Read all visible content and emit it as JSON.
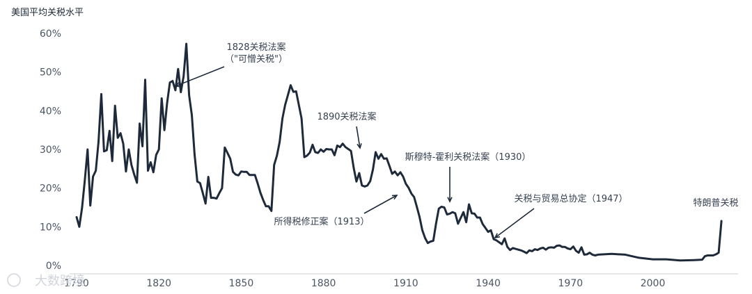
{
  "chart_data": {
    "type": "line",
    "title": "",
    "ylabel": "美国平均关税水平",
    "xlabel": "",
    "xlim": [
      1790,
      2026
    ],
    "ylim": [
      0,
      60
    ],
    "xticks": [
      1790,
      1820,
      1850,
      1880,
      1910,
      1940,
      1970,
      2000
    ],
    "yticks": [
      "0%",
      "10%",
      "20%",
      "30%",
      "40%",
      "50%",
      "60%"
    ],
    "grid": false,
    "series": [
      {
        "x": [
          1790,
          1791,
          1792,
          1793,
          1794,
          1795,
          1796,
          1797,
          1798,
          1799,
          1800,
          1801,
          1802,
          1803,
          1804,
          1805,
          1806,
          1807,
          1808,
          1809,
          1810,
          1811,
          1812,
          1813,
          1814,
          1815,
          1816,
          1817,
          1818,
          1819,
          1820,
          1821,
          1822,
          1823,
          1824,
          1825,
          1826,
          1827,
          1828,
          1829,
          1830,
          1831,
          1832,
          1833,
          1834,
          1835,
          1836,
          1837,
          1838,
          1839,
          1840,
          1841,
          1842,
          1843,
          1844,
          1845,
          1846,
          1847,
          1848,
          1849,
          1850,
          1851,
          1852,
          1853,
          1854,
          1855,
          1856,
          1857,
          1858,
          1859,
          1860,
          1861,
          1862,
          1863,
          1864,
          1865,
          1866,
          1867,
          1868,
          1869,
          1870,
          1871,
          1872,
          1873,
          1874,
          1875,
          1876,
          1877,
          1878,
          1879,
          1880,
          1881,
          1882,
          1883,
          1884,
          1885,
          1886,
          1887,
          1888,
          1889,
          1890,
          1891,
          1892,
          1893,
          1894,
          1895,
          1896,
          1897,
          1898,
          1899,
          1900,
          1901,
          1902,
          1903,
          1904,
          1905,
          1906,
          1907,
          1908,
          1909,
          1910,
          1911,
          1912,
          1913,
          1914,
          1915,
          1916,
          1917,
          1918,
          1919,
          1920,
          1921,
          1922,
          1923,
          1924,
          1925,
          1926,
          1927,
          1928,
          1929,
          1930,
          1931,
          1932,
          1933,
          1934,
          1935,
          1936,
          1937,
          1938,
          1939,
          1940,
          1941,
          1942,
          1943,
          1944,
          1945,
          1946,
          1947,
          1948,
          1949,
          1950,
          1951,
          1952,
          1953,
          1954,
          1955,
          1956,
          1957,
          1958,
          1959,
          1960,
          1961,
          1962,
          1963,
          1964,
          1965,
          1966,
          1967,
          1968,
          1969,
          1970,
          1971,
          1972,
          1973,
          1974,
          1975,
          1976,
          1977,
          1978,
          1979,
          1980,
          1985,
          1990,
          1995,
          2000,
          2005,
          2010,
          2015,
          2018,
          2019,
          2020,
          2022,
          2023,
          2024,
          2025
        ],
        "y": [
          12.5,
          10,
          15,
          22,
          30,
          15.5,
          23,
          24.5,
          32,
          44.3,
          29.5,
          29.8,
          34.8,
          27,
          41.3,
          33,
          34.2,
          31.5,
          24.3,
          30,
          26,
          23.5,
          21.4,
          36.7,
          30.8,
          48,
          24.5,
          26.7,
          24.1,
          28.6,
          30,
          43.2,
          35,
          42,
          47.3,
          47.7,
          45.3,
          50.8,
          44.8,
          48.9,
          57.3,
          44,
          38.9,
          28.8,
          21.7,
          21.3,
          18.7,
          16,
          22.9,
          17.5,
          17.5,
          17.3,
          18.7,
          20,
          30.5,
          29.1,
          27.6,
          24.2,
          23.5,
          23.3,
          24.3,
          24.2,
          24.2,
          23.4,
          23.4,
          23.4,
          21.2,
          18.8,
          16.9,
          15.3,
          15.3,
          14.1,
          26,
          28.4,
          31.9,
          38,
          41.5,
          44,
          46.6,
          44.9,
          45,
          41.5,
          38,
          28,
          28.4,
          29.2,
          31.2,
          29.3,
          29.1,
          30,
          29.4,
          30.1,
          30,
          30,
          28.5,
          31,
          30.6,
          31.5,
          30.6,
          30.1,
          29.6,
          25.2,
          21.7,
          23.9,
          20.7,
          20.4,
          20.7,
          21.8,
          24.8,
          29.3,
          27.6,
          28.8,
          27.6,
          27.7,
          25.8,
          23.7,
          24.3,
          23.3,
          24.1,
          23,
          21.1,
          20.1,
          18.6,
          17.7,
          15.2,
          12.5,
          9.1,
          7.1,
          5.8,
          6.2,
          6.4,
          10.8,
          14.7,
          15.2,
          15,
          13.2,
          13.4,
          13.8,
          13.5,
          10.8,
          12.3,
          13.8,
          11.2,
          15.8,
          13.5,
          13.4,
          12.4,
          12.4,
          10.7,
          9.7,
          8.7,
          9.1,
          6.8,
          6.5,
          6,
          5.5,
          7,
          4.8,
          4,
          4.5,
          4.3,
          4.1,
          3.9,
          3.6,
          3.2,
          3.9,
          3.7,
          4.2,
          4,
          4.4,
          4.6,
          4.1,
          4.6,
          4.7,
          4.6,
          5.1,
          5.2,
          4.8,
          4.8,
          4.4,
          4.2,
          4.9,
          3.8,
          3.3,
          4.7,
          2.8,
          2.9,
          3.3,
          2.8,
          2.6,
          2.8,
          3,
          2.8,
          2,
          1.6,
          1.6,
          1.3,
          1.4,
          1.5,
          2.4,
          2.6,
          2.6,
          2.9,
          3.3,
          11.5
        ]
      }
    ],
    "annotations": [
      {
        "lines": [
          "1828关税法案",
          "（\"可憎关税\"）"
        ],
        "x": 1828,
        "y": 47.3
      },
      {
        "lines": [
          "1890关税法案"
        ],
        "x": 1893,
        "y": 29
      },
      {
        "lines": [
          "斯穆特-霍利关税法案（1930）"
        ],
        "x": 1930,
        "y": 16.3
      },
      {
        "lines": [
          "所得税修正案（1913）"
        ],
        "x": 1913,
        "y": 18.2
      },
      {
        "lines": [
          "关税与贸易总协定（1947）"
        ],
        "x": 1947,
        "y": 7.3
      },
      {
        "lines": [
          "特朗普关税"
        ],
        "x": 2025,
        "y": 11.5
      }
    ]
  },
  "watermark": "大数跨境"
}
